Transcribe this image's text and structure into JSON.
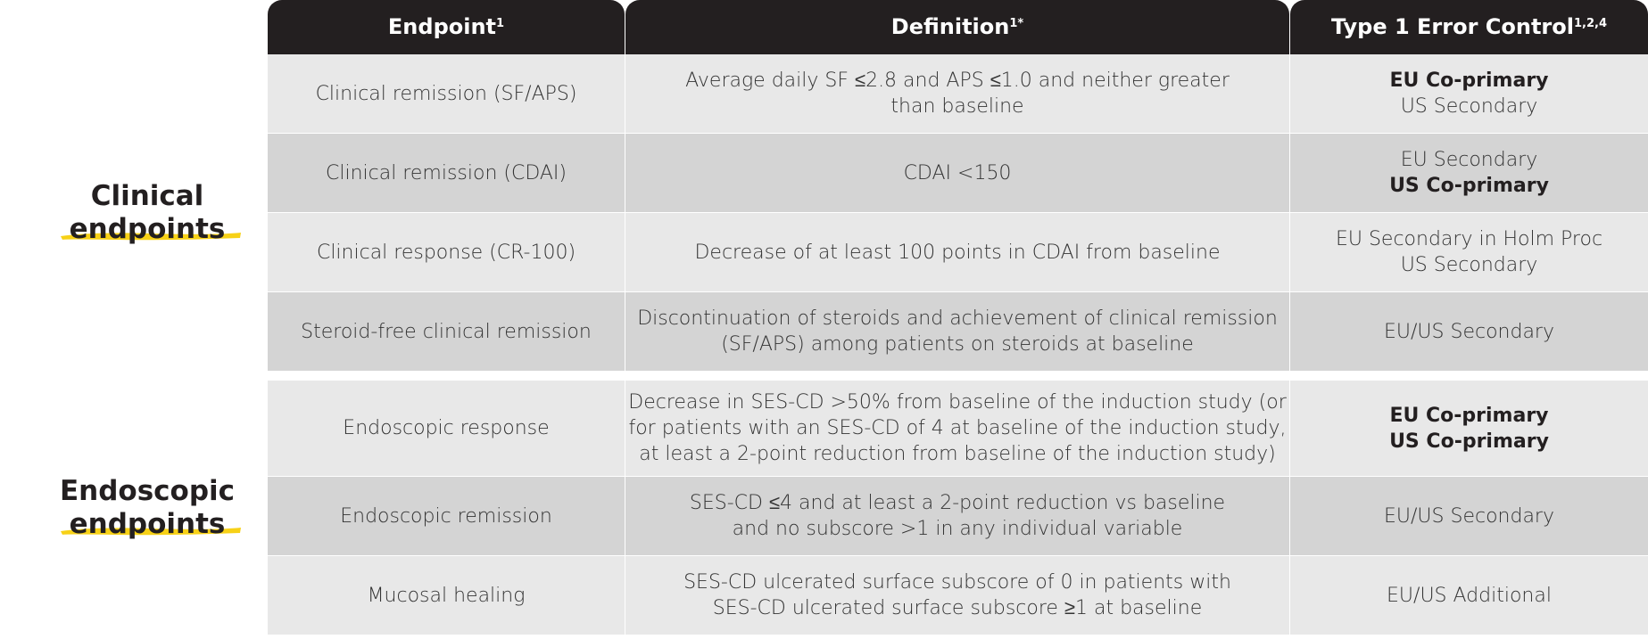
{
  "header": [
    {
      "text": "Endpoint",
      "sup": "1"
    },
    {
      "text": "Definition",
      "sup": "1*"
    },
    {
      "text": "Type 1 Error Control",
      "sup": "1,2,4"
    }
  ],
  "groups": [
    {
      "label": [
        "Clinical",
        "endpoints"
      ],
      "rows": [
        {
          "endpoint": "Clinical remission (SF/APS)",
          "definition": [
            "Average daily SF ≤2.8 and APS ≤1.0 and neither greater",
            "than baseline"
          ],
          "control": [
            {
              "text": "EU Co-primary",
              "bold": true
            },
            {
              "text": "US Secondary",
              "bold": false
            }
          ]
        },
        {
          "endpoint": "Clinical remission (CDAI)",
          "definition": [
            "CDAI <150"
          ],
          "control": [
            {
              "text": "EU Secondary",
              "bold": false
            },
            {
              "text": "US Co-primary",
              "bold": true
            }
          ]
        },
        {
          "endpoint": "Clinical response (CR-100)",
          "definition": [
            "Decrease of at least 100 points in CDAI from baseline"
          ],
          "control": [
            {
              "text": "EU Secondary in Holm Proc",
              "bold": false
            },
            {
              "text": "US Secondary",
              "bold": false
            }
          ]
        },
        {
          "endpoint": "Steroid-free clinical remission",
          "definition": [
            "Discontinuation of steroids and achievement of clinical remission",
            "(SF/APS) among patients on steroids at baseline"
          ],
          "control": [
            {
              "text": "EU/US Secondary",
              "bold": false
            }
          ]
        }
      ]
    },
    {
      "label": [
        "Endoscopic",
        "endpoints"
      ],
      "rows": [
        {
          "endpoint": "Endoscopic response",
          "definition": [
            "Decrease in SES-CD >50% from baseline of the induction study (or",
            "for patients with an SES-CD of 4 at baseline of the induction study,",
            "at least a 2-point reduction from baseline of the induction study)"
          ],
          "control": [
            {
              "text": "EU Co-primary",
              "bold": true
            },
            {
              "text": "US Co-primary",
              "bold": true
            }
          ]
        },
        {
          "endpoint": "Endoscopic remission",
          "definition": [
            "SES-CD ≤4 and at least a 2-point reduction vs baseline",
            "and no subscore >1 in any individual variable"
          ],
          "control": [
            {
              "text": "EU/US Secondary",
              "bold": false
            }
          ]
        },
        {
          "endpoint": "Mucosal healing",
          "definition": [
            "SES-CD ulcerated surface subscore of 0 in patients with",
            "SES-CD ulcerated surface subscore ≥1 at baseline"
          ],
          "control": [
            {
              "text": "EU/US Additional",
              "bold": false
            }
          ]
        }
      ]
    }
  ]
}
